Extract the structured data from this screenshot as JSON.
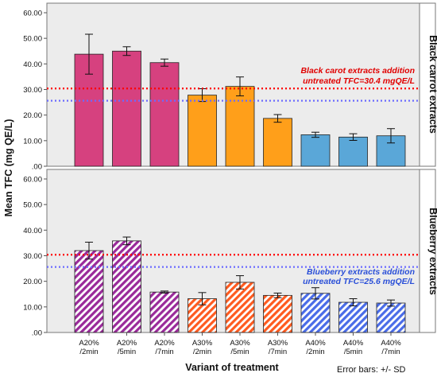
{
  "chart_data": {
    "type": "bar",
    "ylabel": "Mean TFC (mg QE/L)",
    "xlabel": "Variant of treatment",
    "footnote": "Error bars: +/- SD",
    "ylim": [
      0,
      60
    ],
    "yticks": [
      ".00",
      "10.00",
      "20.00",
      "30.00",
      "40.00",
      "50.00",
      "60.00"
    ],
    "categories": [
      "A20%\n/2min",
      "A20%\n/5min",
      "A20%\n/7min",
      "A30%\n/2min",
      "A30%\n/5min",
      "A30%\n/7min",
      "A40%\n/2min",
      "A40%\n/5min",
      "A40%\n/7min"
    ],
    "group_colors": [
      "#d6417f",
      "#ff9f1a",
      "#5aa7d8"
    ],
    "panels": [
      {
        "name": "Black carrot extracts",
        "values": [
          43.8,
          45.0,
          40.5,
          27.8,
          31.2,
          18.7,
          12.3,
          11.4,
          11.9
        ],
        "errors": [
          7.8,
          1.7,
          1.4,
          2.5,
          3.7,
          1.5,
          1.0,
          1.3,
          2.8
        ],
        "colors": [
          "#d6417f",
          "#d6417f",
          "#d6417f",
          "#ff9f1a",
          "#ff9f1a",
          "#ff9f1a",
          "#5aa7d8",
          "#5aa7d8",
          "#5aa7d8"
        ],
        "hatched": false,
        "ref_lines": [
          {
            "value": 30.4,
            "color": "#ff0000",
            "style": "dotted"
          },
          {
            "value": 25.6,
            "color": "#6b6bff",
            "style": "dotted"
          }
        ],
        "annotation": {
          "line1": "Black carot extracts addition",
          "line2": "untreated TFC=30.4 mgQE/L",
          "color": "#e00000"
        }
      },
      {
        "name": "Blueberry extracts",
        "values": [
          32.0,
          35.8,
          15.8,
          13.2,
          19.6,
          14.5,
          15.3,
          11.8,
          11.5
        ],
        "errors": [
          3.3,
          1.5,
          0.4,
          2.4,
          2.6,
          0.9,
          2.2,
          1.4,
          1.2
        ],
        "colors": [
          "#9a2a9a",
          "#9a2a9a",
          "#9a2a9a",
          "#ff5a1f",
          "#ff5a1f",
          "#ff5a1f",
          "#4a6ce8",
          "#4a6ce8",
          "#4a6ce8"
        ],
        "hatched": true,
        "ref_lines": [
          {
            "value": 30.4,
            "color": "#ff0000",
            "style": "dotted"
          },
          {
            "value": 25.6,
            "color": "#6b6bff",
            "style": "dotted"
          }
        ],
        "annotation": {
          "line1": "Blueberry extracts addition",
          "line2": "untreated TFC=25.6 mgQE/L",
          "color": "#2a4fd8"
        }
      }
    ],
    "grid": false,
    "panel_background": "#ececec"
  }
}
